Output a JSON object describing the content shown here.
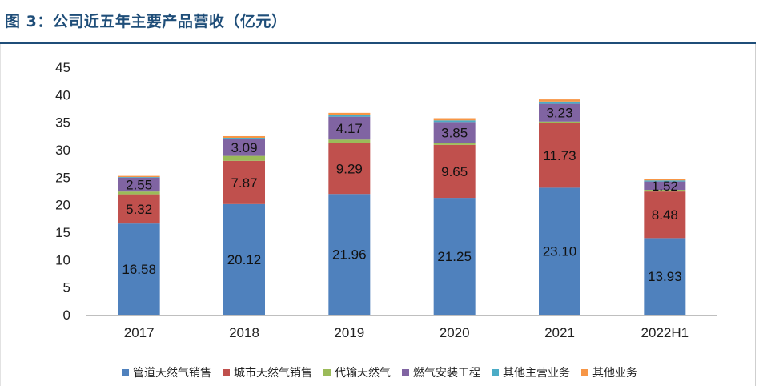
{
  "title": "图 3：公司近五年主要产品营收（亿元）",
  "chart_data": {
    "type": "bar",
    "stacked": true,
    "title": "图 3：公司近五年主要产品营收（亿元）",
    "xlabel": "",
    "ylabel": "",
    "ylim": [
      0,
      45
    ],
    "yticks": [
      0,
      5,
      10,
      15,
      20,
      25,
      30,
      35,
      40,
      45
    ],
    "grid": false,
    "legend_position": "bottom",
    "categories": [
      "2017",
      "2018",
      "2019",
      "2020",
      "2021",
      "2022H1"
    ],
    "series": [
      {
        "name": "管道天然气销售",
        "color": "#4f81bd",
        "values": [
          16.58,
          20.12,
          21.96,
          21.25,
          23.1,
          13.93
        ],
        "labels": [
          "16.58",
          "20.12",
          "21.96",
          "21.25",
          "23.10",
          "13.93"
        ]
      },
      {
        "name": "城市天然气销售",
        "color": "#c0504d",
        "values": [
          5.32,
          7.87,
          9.29,
          9.65,
          11.73,
          8.48
        ],
        "labels": [
          "5.32",
          "7.87",
          "9.29",
          "9.65",
          "11.73",
          "8.48"
        ]
      },
      {
        "name": "代输天然气",
        "color": "#9bbb59",
        "values": [
          0.5,
          0.9,
          0.6,
          0.3,
          0.3,
          0.3
        ],
        "labels": [
          "",
          "",
          "",
          "",
          "",
          ""
        ]
      },
      {
        "name": "燃气安装工程",
        "color": "#8064a2",
        "values": [
          2.55,
          3.09,
          4.17,
          3.85,
          3.23,
          1.52
        ],
        "labels": [
          "2.55",
          "3.09",
          "4.17",
          "3.85",
          "3.23",
          "1.52"
        ]
      },
      {
        "name": "其他主营业务",
        "color": "#4bacc6",
        "values": [
          0.1,
          0.2,
          0.3,
          0.3,
          0.4,
          0.2
        ],
        "labels": [
          "",
          "",
          "",
          "",
          "",
          ""
        ]
      },
      {
        "name": "其他业务",
        "color": "#f79646",
        "values": [
          0.2,
          0.3,
          0.4,
          0.4,
          0.4,
          0.3
        ],
        "labels": [
          "",
          "",
          "",
          "",
          "",
          ""
        ]
      }
    ]
  }
}
